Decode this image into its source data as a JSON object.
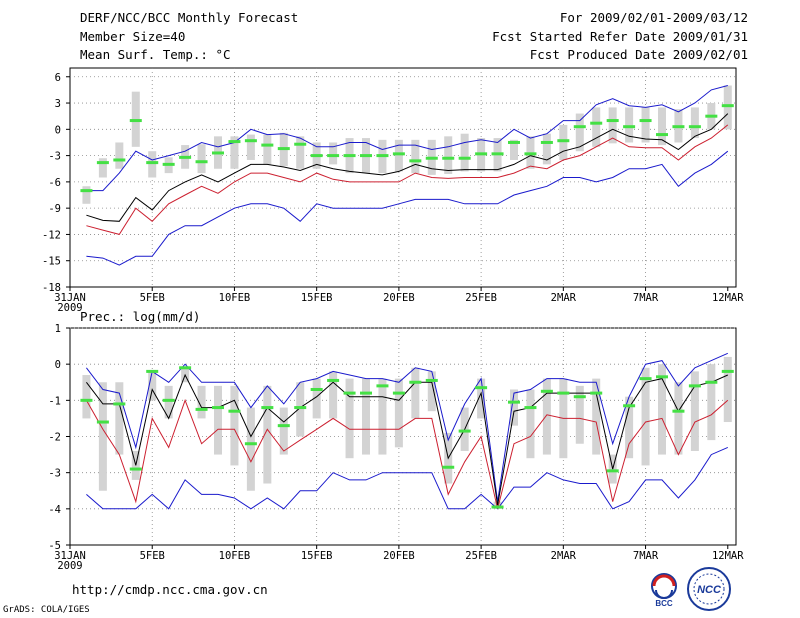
{
  "header": {
    "title": "DERF/NCC/BCC Monthly Forecast",
    "member_size": "Member Size=40",
    "variable": "Mean Surf. Temp.: °C",
    "period": "For 2009/02/01-2009/03/12",
    "started": "Fcst Started Refer Date 2009/01/31",
    "produced": "Fcst Produced Date 2009/02/01"
  },
  "footer": {
    "url": "http://cmdp.ncc.cma.gov.cn",
    "credit": "GrADS: COLA/IGES",
    "logo_bcc": "BCC",
    "logo_ncc": "NCC"
  },
  "colors": {
    "box": "#d3d3d3",
    "median": "#44e044",
    "mean": "#000000",
    "inner": "#cc2030",
    "outer": "#1a1acc"
  },
  "chart_data": [
    {
      "type": "line",
      "title": "Mean Surf. Temp.: °C",
      "xlabel": "",
      "ylabel": "",
      "x_tick_labels": [
        "31JAN",
        "5FEB",
        "10FEB",
        "15FEB",
        "20FEB",
        "25FEB",
        "2MAR",
        "7MAR",
        "12MAR"
      ],
      "x_tick_days": [
        0,
        5,
        10,
        15,
        20,
        25,
        30,
        35,
        40
      ],
      "year_label": "2009",
      "ylim": [
        -18,
        7
      ],
      "y_ticks": [
        -18,
        -15,
        -12,
        -9,
        -6,
        -3,
        0,
        3,
        6
      ],
      "grid": true,
      "x_days": [
        1,
        2,
        3,
        4,
        5,
        6,
        7,
        8,
        9,
        10,
        11,
        12,
        13,
        14,
        15,
        16,
        17,
        18,
        19,
        20,
        21,
        22,
        23,
        24,
        25,
        26,
        27,
        28,
        29,
        30,
        31,
        32,
        33,
        34,
        35,
        36,
        37,
        38,
        39,
        40
      ],
      "series": [
        {
          "name": "ensemble mean",
          "values": [
            -9.8,
            -10.4,
            -10.5,
            -7.8,
            -9.2,
            -7,
            -6,
            -5.2,
            -6,
            -5,
            -4,
            -4,
            -4.3,
            -4.7,
            -4,
            -4.5,
            -4.8,
            -5,
            -5.2,
            -4.8,
            -4,
            -4.5,
            -4.7,
            -4.6,
            -4.6,
            -4.6,
            -4,
            -3,
            -3.5,
            -2.5,
            -2,
            -1,
            0,
            -0.8,
            -1.1,
            -1.2,
            -2.3,
            -0.8,
            0,
            1.8
          ]
        },
        {
          "name": "upper bound",
          "values": [
            -7,
            -7,
            -5,
            -2.5,
            -3.5,
            -3,
            -2.5,
            -1.5,
            -2,
            -1.5,
            0,
            -0.6,
            -0.5,
            -1,
            -2,
            -2,
            -1.5,
            -1.5,
            -2.3,
            -1.8,
            -1.8,
            -2.3,
            -2,
            -1.5,
            -1.2,
            -1.5,
            0,
            -1,
            -0.5,
            1,
            1,
            2.8,
            3.5,
            2.7,
            2.5,
            2.8,
            2,
            3,
            4.5,
            5
          ]
        },
        {
          "name": "inner lower",
          "values": [
            -11,
            -11.5,
            -12,
            -9,
            -10.5,
            -8.5,
            -7.5,
            -6.5,
            -7.3,
            -6,
            -5,
            -5,
            -5.5,
            -6,
            -5,
            -5.7,
            -6,
            -6,
            -6,
            -6,
            -5,
            -5.5,
            -5.6,
            -5.5,
            -5.5,
            -5.5,
            -5,
            -4.2,
            -4.5,
            -3.5,
            -3,
            -2,
            -1,
            -2,
            -2.1,
            -2.1,
            -3.5,
            -2,
            -1,
            0.5
          ]
        },
        {
          "name": "lower bound",
          "values": [
            -14.5,
            -14.7,
            -15.5,
            -14.5,
            -14.5,
            -12,
            -11,
            -11,
            -10,
            -9,
            -8.5,
            -8.5,
            -9,
            -10.5,
            -8.5,
            -9,
            -9,
            -9,
            -9,
            -8.5,
            -8,
            -8,
            -8,
            -8.5,
            -8.5,
            -8.5,
            -7.5,
            -7,
            -6.5,
            -5.5,
            -5.5,
            -6,
            -5.5,
            -4.5,
            -4.5,
            -4,
            -6.5,
            -5,
            -4,
            -2.5
          ]
        },
        {
          "name": "median",
          "values": [
            -7,
            -3.8,
            -3.5,
            1,
            -3.8,
            -4,
            -3.2,
            -3.7,
            -2.7,
            -1.4,
            -1.3,
            -1.8,
            -2.2,
            -1.7,
            -3,
            -3,
            -3,
            -3,
            -3,
            -2.8,
            -3.6,
            -3.3,
            -3.3,
            -3.3,
            -2.8,
            -2.8,
            -1.5,
            -2.8,
            -1.5,
            -1.3,
            0.3,
            0.7,
            1,
            0.3,
            1,
            -0.6,
            0.3,
            0.3,
            1.5,
            2.7
          ]
        },
        {
          "name": "box low",
          "values": [
            -8.5,
            -5.5,
            -4.5,
            -2,
            -5.5,
            -5,
            -4.5,
            -5,
            -4.5,
            -4.5,
            -3.5,
            -4,
            -4.2,
            -4.5,
            -4.5,
            -4,
            -5,
            -5,
            -5,
            -4.8,
            -5,
            -5.2,
            -5.1,
            -4.8,
            -4.8,
            -4.8,
            -3.5,
            -4.5,
            -4,
            -3.5,
            -2.5,
            -2,
            -1.6,
            -1.5,
            -1.5,
            -1.8,
            -1.5,
            -1,
            0,
            0
          ]
        },
        {
          "name": "box high",
          "values": [
            -6.5,
            -3.3,
            -1.5,
            4.3,
            -2.5,
            -3.2,
            -1.8,
            -1.7,
            -0.8,
            -0.8,
            -0.6,
            -0.6,
            -0.4,
            -0.8,
            -1.5,
            -1.5,
            -1,
            -1,
            -1.2,
            -1.2,
            -1.2,
            -1.2,
            -0.8,
            -0.5,
            -1,
            -1,
            -1.2,
            -0.8,
            -0.5,
            0.5,
            1.8,
            2.5,
            2.5,
            2.5,
            2.5,
            2.5,
            2.3,
            2.5,
            3,
            5
          ]
        }
      ]
    },
    {
      "type": "line",
      "title": "Prec.: log(mm/d)",
      "xlabel": "",
      "ylabel": "",
      "x_tick_labels": [
        "31JAN",
        "5FEB",
        "10FEB",
        "15FEB",
        "20FEB",
        "25FEB",
        "2MAR",
        "7MAR",
        "12MAR"
      ],
      "x_tick_days": [
        0,
        5,
        10,
        15,
        20,
        25,
        30,
        35,
        40
      ],
      "year_label": "2009",
      "ylim": [
        -5,
        1
      ],
      "y_ticks": [
        -5,
        -4,
        -3,
        -2,
        -1,
        0,
        1
      ],
      "grid": true,
      "x_days": [
        1,
        2,
        3,
        4,
        5,
        6,
        7,
        8,
        9,
        10,
        11,
        12,
        13,
        14,
        15,
        16,
        17,
        18,
        19,
        20,
        21,
        22,
        23,
        24,
        25,
        26,
        27,
        28,
        29,
        30,
        31,
        32,
        33,
        34,
        35,
        36,
        37,
        38,
        39,
        40
      ],
      "series": [
        {
          "name": "ensemble mean",
          "values": [
            -0.5,
            -1.1,
            -1.1,
            -2.8,
            -0.7,
            -1.5,
            -0.3,
            -1.2,
            -1.2,
            -1,
            -2,
            -1.2,
            -1.6,
            -1.2,
            -0.9,
            -0.5,
            -0.9,
            -0.9,
            -0.9,
            -1,
            -0.5,
            -0.5,
            -2.6,
            -1.8,
            -0.8,
            -3.9,
            -1.3,
            -1.2,
            -0.8,
            -0.8,
            -0.8,
            -0.8,
            -2.9,
            -1.2,
            -0.5,
            -0.4,
            -1.3,
            -0.6,
            -0.5,
            -0.3
          ]
        },
        {
          "name": "upper bound",
          "values": [
            -0.1,
            -0.7,
            -0.8,
            -2.3,
            -0.2,
            -0.5,
            0,
            -0.5,
            -0.5,
            -0.5,
            -1.2,
            -0.6,
            -1.1,
            -0.5,
            -0.4,
            -0.2,
            -0.3,
            -0.4,
            -0.4,
            -0.5,
            -0.1,
            -0.2,
            -2.1,
            -1.1,
            -0.4,
            -3.8,
            -0.8,
            -0.7,
            -0.4,
            -0.4,
            -0.5,
            -0.5,
            -2.2,
            -0.9,
            0,
            0.1,
            -0.6,
            -0.1,
            0.1,
            0.3
          ]
        },
        {
          "name": "inner lower",
          "values": [
            -1,
            -1.8,
            -2.5,
            -3.8,
            -1.5,
            -2.3,
            -1,
            -2.2,
            -1.8,
            -1.8,
            -2.7,
            -1.8,
            -2.4,
            -2.1,
            -1.8,
            -1.5,
            -1.8,
            -1.8,
            -1.8,
            -1.8,
            -1.5,
            -1.5,
            -3.6,
            -2.7,
            -2,
            -4,
            -2.2,
            -2,
            -1.4,
            -1.5,
            -1.5,
            -1.6,
            -3.8,
            -2.2,
            -1.6,
            -1.5,
            -2.5,
            -1.6,
            -1.4,
            -1
          ]
        },
        {
          "name": "lower bound",
          "values": [
            -3.6,
            -4,
            -4,
            -4,
            -3.6,
            -4,
            -3.2,
            -3.6,
            -3.6,
            -3.7,
            -4,
            -3.7,
            -4,
            -3.5,
            -3.5,
            -3,
            -3.2,
            -3.2,
            -3,
            -3,
            -3,
            -3,
            -4,
            -4,
            -3.6,
            -4,
            -3.4,
            -3.4,
            -3,
            -3.2,
            -3.3,
            -3.3,
            -4,
            -3.8,
            -3.2,
            -3.2,
            -3.7,
            -3.2,
            -2.5,
            -2.3
          ]
        },
        {
          "name": "median",
          "values": [
            -1,
            -1.6,
            -1.1,
            -2.9,
            -0.2,
            -1,
            -0.1,
            -1.25,
            -1.2,
            -1.3,
            -2.2,
            -1.2,
            -1.7,
            -1.2,
            -0.7,
            -0.45,
            -0.8,
            -0.8,
            -0.6,
            -0.8,
            -0.5,
            -0.45,
            -2.85,
            -1.85,
            -0.65,
            -3.95,
            -1.05,
            -1.2,
            -0.75,
            -0.8,
            -0.9,
            -0.8,
            -2.95,
            -1.15,
            -0.4,
            -0.35,
            -1.3,
            -0.6,
            -0.5,
            -0.2
          ]
        },
        {
          "name": "box low",
          "values": [
            -1.5,
            -3.5,
            -2.5,
            -3.2,
            -1,
            -1.5,
            -0.5,
            -1.5,
            -2.5,
            -2.8,
            -3.5,
            -3.3,
            -2.5,
            -2,
            -1.5,
            -1.5,
            -2.6,
            -2.5,
            -2.5,
            -2.3,
            -1.5,
            -1.3,
            -3.3,
            -2.4,
            -1.5,
            -4,
            -1.7,
            -2.6,
            -2.5,
            -2.6,
            -2.2,
            -2.5,
            -3.3,
            -2.6,
            -2.8,
            -2.5,
            -2.5,
            -2.4,
            -2.1,
            -1.6
          ]
        },
        {
          "name": "box high",
          "values": [
            -0.3,
            -0.5,
            -0.5,
            -2.4,
            -0.2,
            -0.6,
            -0.1,
            -0.6,
            -0.6,
            -0.6,
            -1.2,
            -0.6,
            -1.2,
            -0.5,
            -0.4,
            -0.2,
            -0.4,
            -0.4,
            -0.4,
            -0.4,
            -0.1,
            -0.2,
            -1.9,
            -1.2,
            -0.4,
            -3.8,
            -0.7,
            -0.7,
            -0.4,
            -0.4,
            -0.6,
            -0.4,
            -2.5,
            -0.9,
            -0.1,
            0,
            -0.5,
            -0.2,
            0,
            0.2
          ]
        }
      ]
    }
  ]
}
